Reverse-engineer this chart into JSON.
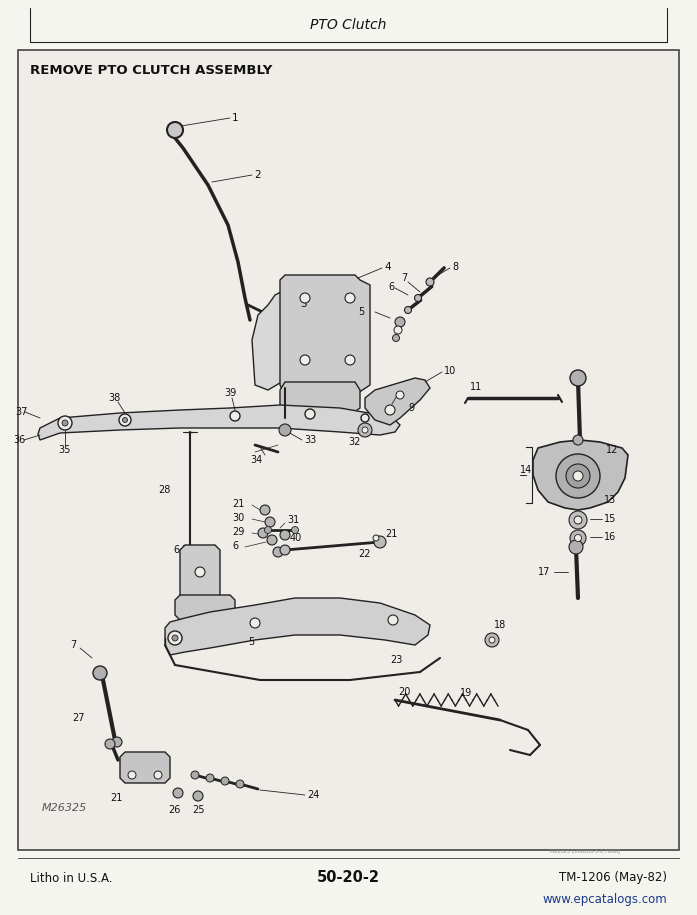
{
  "page_title": "PTO Clutch",
  "section_title": "REMOVE PTO CLUTCH ASSEMBLY",
  "footer_left": "Litho in U.S.A.",
  "footer_center": "50-20-2",
  "footer_right": "TM-1206 (May-82)",
  "footer_url": "www.epcatalogs.com",
  "drawing_id": "M26325",
  "bg_color": "#f5f5f0",
  "content_bg": "#f0ede8",
  "border_color": "#444444",
  "text_color": "#111111",
  "url_color": "#1a3a8a",
  "line_color": "#222222",
  "fig_width": 6.97,
  "fig_height": 9.15,
  "dpi": 100
}
